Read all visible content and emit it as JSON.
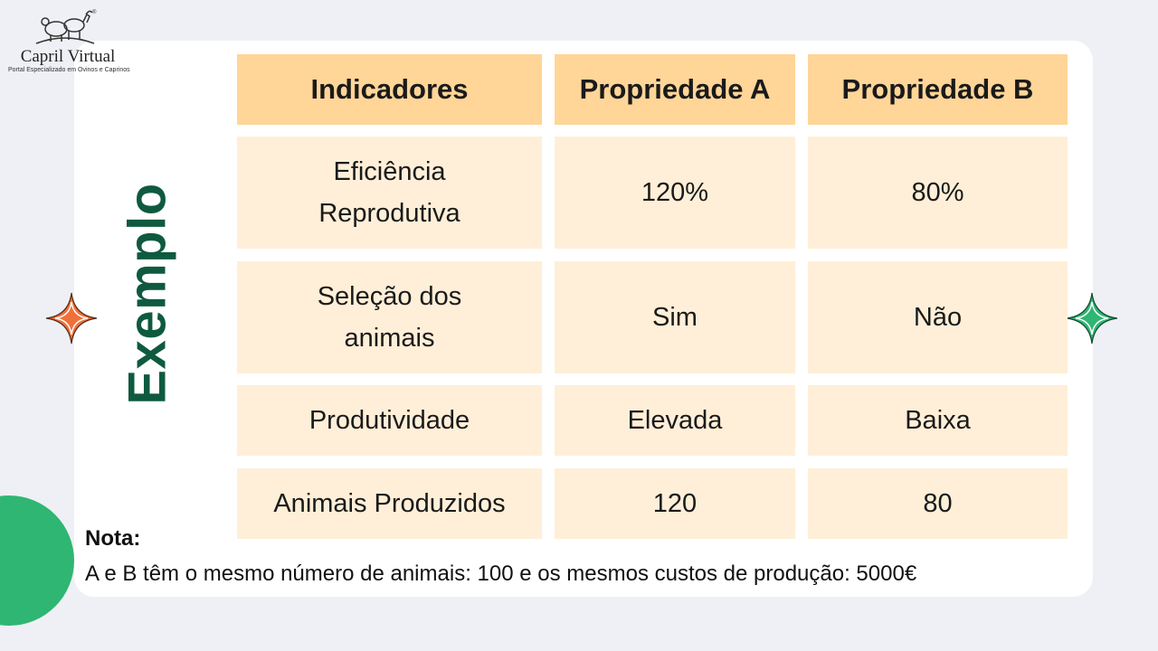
{
  "logo": {
    "icon": "goat-sheep-icon",
    "title": "Capril Virtual",
    "subtitle": "Portal Especializado em Ovinos e Caprinos"
  },
  "slide": {
    "vertical_title": "Exemplo",
    "colors": {
      "title_green": "#0f5a3f",
      "header_fill": "#ffd598",
      "cell_fill": "#ffefd8",
      "sparkle_left": "#f0703a",
      "sparkle_right": "#2fb673",
      "circle": "#2fb673"
    }
  },
  "table": {
    "headers": [
      "Indicadores",
      "Propriedade A",
      "Propriedade B"
    ],
    "rows": [
      {
        "indicator_lines": [
          "Eficiência",
          "Reprodutiva"
        ],
        "a": "120%",
        "b": "80%"
      },
      {
        "indicator_lines": [
          "Seleção dos",
          "animais"
        ],
        "a": "Sim",
        "b": "Não"
      },
      {
        "indicator_lines": [
          "Produtividade"
        ],
        "a": "Elevada",
        "b": "Baixa"
      },
      {
        "indicator_lines": [
          "Animais Produzidos"
        ],
        "a": "120",
        "b": "80"
      }
    ]
  },
  "note": {
    "label": "Nota:",
    "text": "A e B têm o mesmo número de animais: 100 e os mesmos custos de produção: 5000€"
  }
}
